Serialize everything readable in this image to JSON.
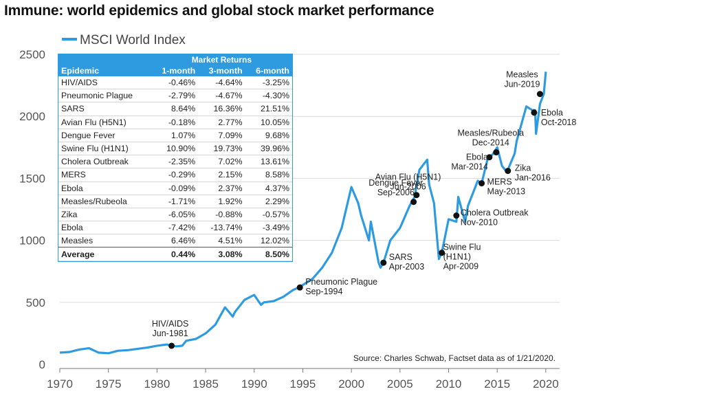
{
  "title": "Immune: world epidemics and global stock market performance",
  "source": "Source: Charles Schwab, Factset data as of 1/21/2020.",
  "colors": {
    "line": "#2e9be0",
    "marker": "#111111",
    "grid": "#d9d9d9"
  },
  "chart_data": {
    "type": "line",
    "title": "Immune: world epidemics and global stock market performance",
    "xlabel": "",
    "ylabel": "",
    "xlim": [
      1970,
      2021
    ],
    "ylim": [
      0,
      2500
    ],
    "grid": true,
    "legend_position": "top-left",
    "x_ticks": [
      1970,
      1975,
      1980,
      1985,
      1990,
      1995,
      2000,
      2005,
      2010,
      2015,
      2020
    ],
    "y_ticks": [
      0,
      500,
      1000,
      1500,
      2000,
      2500
    ],
    "series": [
      {
        "name": "MSCI World Index",
        "x": [
          1970,
          1971,
          1972,
          1973,
          1974,
          1975,
          1976,
          1977,
          1978,
          1979,
          1980,
          1981,
          1981.5,
          1982,
          1982.6,
          1983,
          1984,
          1985,
          1986,
          1987,
          1987.8,
          1988,
          1989,
          1990,
          1990.7,
          1991,
          1992,
          1993,
          1994,
          1994.7,
          1995,
          1996,
          1997,
          1998,
          1999,
          2000,
          2000.7,
          2001,
          2001.8,
          2002,
          2002.8,
          2003,
          2003.3,
          2004,
          2005,
          2006,
          2006.5,
          2007,
          2007.8,
          2008,
          2008.5,
          2009,
          2009.3,
          2010,
          2010.8,
          2011,
          2011.7,
          2012,
          2013,
          2013.4,
          2014,
          2014.6,
          2015,
          2015.5,
          2016,
          2016.8,
          2017,
          2018,
          2018.6,
          2018.9,
          2019,
          2019.4,
          2019.8,
          2020
        ],
        "values": [
          95,
          100,
          120,
          130,
          95,
          90,
          110,
          115,
          125,
          135,
          150,
          160,
          150,
          145,
          150,
          190,
          205,
          250,
          320,
          460,
          385,
          420,
          520,
          560,
          480,
          500,
          510,
          545,
          600,
          625,
          640,
          690,
          780,
          900,
          1100,
          1430,
          1300,
          1200,
          1000,
          1150,
          820,
          780,
          820,
          1000,
          1100,
          1280,
          1350,
          1570,
          1650,
          1450,
          1300,
          850,
          900,
          1170,
          1150,
          1350,
          1150,
          1280,
          1480,
          1460,
          1650,
          1700,
          1750,
          1600,
          1550,
          1700,
          1800,
          2080,
          2050,
          2050,
          1860,
          2100,
          2180,
          2360
        ]
      }
    ],
    "annotations": [
      {
        "x": 1981.5,
        "y": 150,
        "label": [
          "HIV/AIDS",
          "Jun-1981"
        ]
      },
      {
        "x": 1994.7,
        "y": 620,
        "label": [
          "Pneumonic Plague",
          "Sep-1994"
        ]
      },
      {
        "x": 2003.3,
        "y": 820,
        "label": [
          "SARS",
          "Apr-2003"
        ]
      },
      {
        "x": 2006.4,
        "y": 1310,
        "label": [
          "Avian Flu (H5N1)",
          "Jun-2006"
        ]
      },
      {
        "x": 2006.7,
        "y": 1365,
        "label": [
          "Dengue Fever",
          "Sep-2006"
        ]
      },
      {
        "x": 2009.3,
        "y": 900,
        "label": [
          "Swine Flu",
          "(H1N1)",
          "Apr-2009"
        ]
      },
      {
        "x": 2010.8,
        "y": 1200,
        "label": [
          "Cholera Outbreak",
          "Nov-2010"
        ]
      },
      {
        "x": 2013.4,
        "y": 1460,
        "label": [
          "MERS",
          "May-2013"
        ]
      },
      {
        "x": 2014.2,
        "y": 1670,
        "label": [
          "Ebola",
          "Mar-2014"
        ]
      },
      {
        "x": 2014.9,
        "y": 1710,
        "label": [
          "Measles/Rubeola",
          "Dec-2014"
        ]
      },
      {
        "x": 2016.1,
        "y": 1560,
        "label": [
          "Zika",
          "Jan-2016"
        ]
      },
      {
        "x": 2018.8,
        "y": 2030,
        "label": [
          "Ebola",
          "Oct-2018"
        ]
      },
      {
        "x": 2019.4,
        "y": 2180,
        "label": [
          "Measles",
          "Jun-2019"
        ]
      }
    ]
  },
  "returns_table": {
    "group_header": "Market Returns",
    "columns": [
      "Epidemic",
      "1-month",
      "3-month",
      "6-month"
    ],
    "rows": [
      [
        "HIV/AIDS",
        "-0.46%",
        "-4.64%",
        "-3.25%"
      ],
      [
        "Pneumonic Plague",
        "-2.79%",
        "-4.67%",
        "-4.30%"
      ],
      [
        "SARS",
        "8.64%",
        "16.36%",
        "21.51%"
      ],
      [
        "Avian Flu (H5N1)",
        "-0.18%",
        "2.77%",
        "10.05%"
      ],
      [
        "Dengue Fever",
        "1.07%",
        "7.09%",
        "9.68%"
      ],
      [
        "Swine Flu (H1N1)",
        "10.90%",
        "19.73%",
        "39.96%"
      ],
      [
        "Cholera Outbreak",
        "-2.35%",
        "7.02%",
        "13.61%"
      ],
      [
        "MERS",
        "-0.29%",
        "2.15%",
        "8.58%"
      ],
      [
        "Ebola",
        "-0.09%",
        "2.37%",
        "4.37%"
      ],
      [
        "Measles/Rubeola",
        "-1.71%",
        "1.92%",
        "2.29%"
      ],
      [
        "Zika",
        "-6.05%",
        "-0.88%",
        "-0.57%"
      ],
      [
        "Ebola",
        "-7.42%",
        "-13.74%",
        "-3.49%"
      ],
      [
        "Measles",
        "6.46%",
        "4.51%",
        "12.02%"
      ]
    ],
    "average": [
      "Average",
      "0.44%",
      "3.08%",
      "8.50%"
    ]
  }
}
